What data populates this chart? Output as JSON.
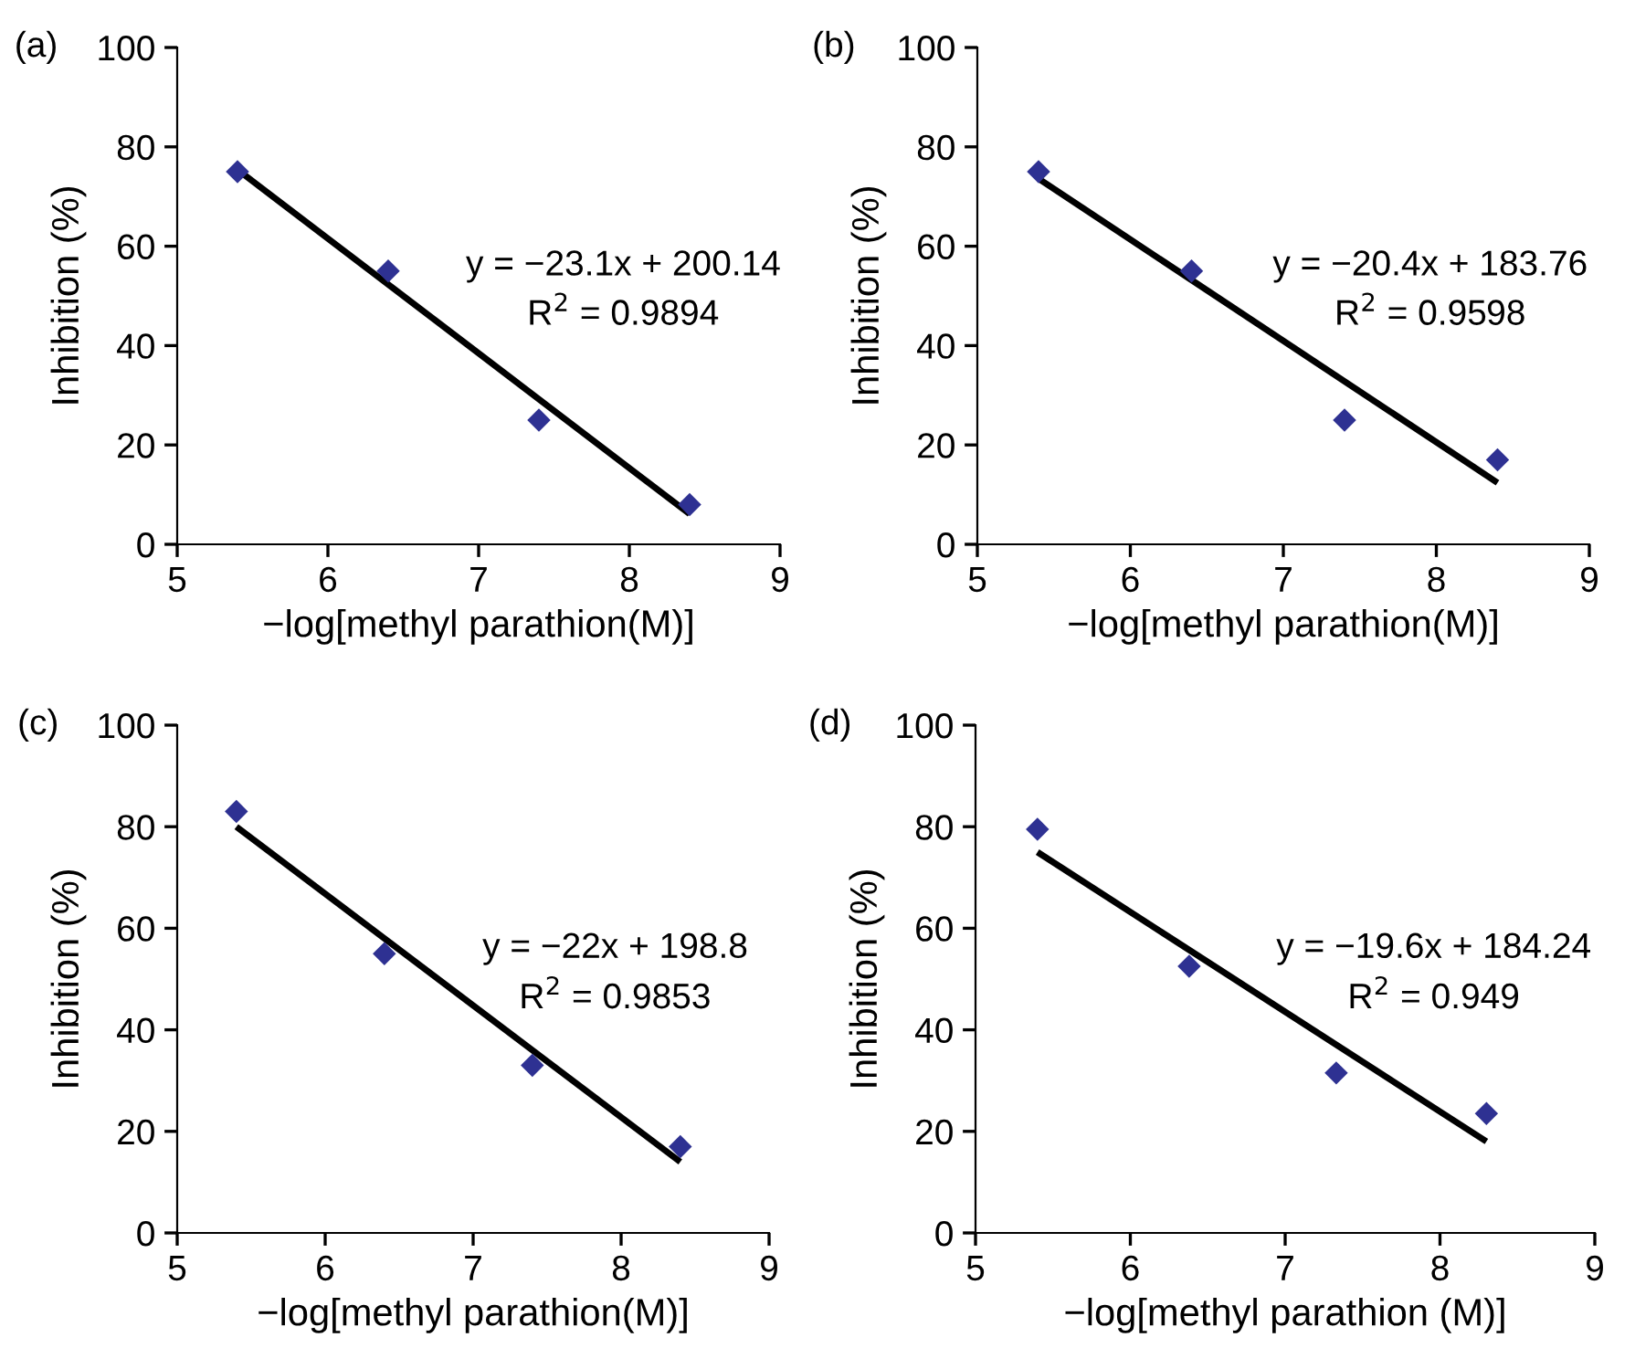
{
  "chart_data": [
    {
      "type": "scatter",
      "title": "(a)",
      "xlabel": "−log[methyl parathion(M)]",
      "ylabel": "Inhibition (%)",
      "xlim": [
        5,
        9
      ],
      "ylim": [
        0,
        100
      ],
      "xticks": [
        5,
        6,
        7,
        8,
        9
      ],
      "yticks": [
        0,
        20,
        40,
        60,
        80,
        100
      ],
      "grid": false,
      "legend": false,
      "series": [
        {
          "color": "#2e3192",
          "marker": "diamond",
          "x": [
            5.4,
            6.4,
            7.4,
            8.4
          ],
          "values": [
            75,
            55,
            25,
            8
          ]
        },
        {
          "type": "line",
          "marker": "none",
          "color": "#000000",
          "x": [
            5.4,
            8.4
          ],
          "values": [
            75.4,
            6.1
          ]
        }
      ],
      "annotations": [
        "y = −23.1x + 200.14",
        "R$^{2}$ = 0.9894"
      ]
    },
    {
      "type": "scatter",
      "title": "(b)",
      "xlabel": "−log[methyl parathion(M)]",
      "ylabel": "Inhibition (%)",
      "xlim": [
        5,
        9
      ],
      "ylim": [
        0,
        100
      ],
      "xticks": [
        5,
        6,
        7,
        8,
        9
      ],
      "yticks": [
        0,
        20,
        40,
        60,
        80,
        100
      ],
      "grid": false,
      "legend": false,
      "series": [
        {
          "color": "#2e3192",
          "marker": "diamond",
          "x": [
            5.4,
            6.4,
            7.4,
            8.4
          ],
          "values": [
            75,
            55,
            25,
            17
          ]
        },
        {
          "type": "line",
          "marker": "none",
          "color": "#000000",
          "x": [
            5.4,
            8.4
          ],
          "values": [
            73.6,
            12.4
          ]
        }
      ],
      "annotations": [
        "y = −20.4x + 183.76",
        "R$^{2}$ = 0.9598"
      ]
    },
    {
      "type": "scatter",
      "title": "(c)",
      "xlabel": "−log[methyl parathion(M)]",
      "ylabel": "Inhibition (%)",
      "xlim": [
        5,
        9
      ],
      "ylim": [
        0,
        100
      ],
      "xticks": [
        5,
        6,
        7,
        8,
        9
      ],
      "yticks": [
        0,
        20,
        40,
        60,
        80,
        100
      ],
      "grid": false,
      "legend": false,
      "series": [
        {
          "color": "#2e3192",
          "marker": "diamond",
          "x": [
            5.4,
            6.4,
            7.4,
            8.4
          ],
          "values": [
            83,
            55,
            33,
            17
          ]
        },
        {
          "type": "line",
          "marker": "none",
          "color": "#000000",
          "x": [
            5.4,
            8.4
          ],
          "values": [
            80,
            14
          ]
        }
      ],
      "annotations": [
        "y = −22x + 198.8",
        "R$^{2}$ = 0.9853"
      ]
    },
    {
      "type": "scatter",
      "title": "(d)",
      "xlabel": "−log[methyl parathion (M)]",
      "ylabel": "Inhibition (%)",
      "xlim": [
        5,
        9
      ],
      "ylim": [
        0,
        100
      ],
      "xticks": [
        5,
        6,
        7,
        8,
        9
      ],
      "yticks": [
        0,
        20,
        40,
        60,
        80,
        100
      ],
      "grid": false,
      "legend": false,
      "series": [
        {
          "color": "#2e3192",
          "marker": "diamond",
          "x": [
            5.4,
            6.38,
            7.33,
            8.3
          ],
          "values": [
            79.5,
            52.5,
            31.5,
            23.5
          ]
        },
        {
          "type": "line",
          "marker": "none",
          "color": "#000000",
          "x": [
            5.4,
            8.3
          ],
          "values": [
            75,
            18
          ]
        }
      ],
      "annotations": [
        "y = −19.6x + 184.24",
        "R$^{2}$ = 0.949"
      ]
    }
  ]
}
